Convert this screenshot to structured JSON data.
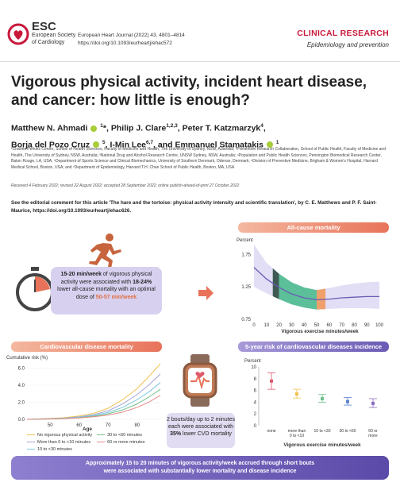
{
  "header": {
    "logo_name": "ESC",
    "society_line1": "European Society",
    "society_line2": "of Cardiology",
    "journal_line1": "European Heart Journal (2022) 43, 4801–4814",
    "journal_line2": "https://doi.org/10.1093/eurheartj/ehac572",
    "section": "CLINICAL RESEARCH",
    "subsection": "Epidemiology and prevention"
  },
  "title": "Vigorous physical activity, incident heart disease, and cancer: how little is enough?",
  "authors": {
    "a1": "Matthew N. Ahmadi",
    "a1_sup": "1",
    "a1_mark": "*,",
    "a2": "Philip J. Clare",
    "a2_sup": "1,2,3",
    "a3": ", Peter T. Katzmarzyk",
    "a3_sup": "4",
    "a3_end": ",",
    "a4": "Borja del Pozo Cruz",
    "a4_sup": "5",
    "a5": ", I-Min Lee",
    "a5_sup": "6,7",
    "a6": ", and Emmanuel Stamatakis",
    "a6_sup": "1"
  },
  "affiliations": "¹Charles Perkins Centre, School of Health Sciences, Faculty of Medicine and Health, The University of Sydney, NSW, Australia; ²Prevention Research Collaboration, School of Public Health, Faculty of Medicine and Health, The University of Sydney, NSW, Australia; ³National Drug and Alcohol Research Centre, UNSW Sydney, NSW, Australia; ⁴Population and Public Health Sciences, Pennington Biomedical Research Center, Baton Rouge, LA, USA; ⁵Department of Sports Science and Clinical Biomechanics, University of Southern Denmark, Odense, Denmark; ⁶Division of Preventive Medicine, Brigham & Women's Hospital, Harvard Medical School, Boston, USA; and ⁷Department of Epidemiology, Harvard T.H. Chan School of Public Health, Boston, MA, USA",
  "received": "Received 4 February 2022; revised 22 August 2022; accepted 28 September 2022; online publish-ahead-of-print 27 October 2022",
  "editorial": "See the editorial comment for this article 'The hare and the tortoise: physical activity intensity and scientific translation', by C. E. Matthews and P. F. Saint-Maurice, https://doi.org/10.1093/eurheartj/ehac626.",
  "abstract": {
    "bubble": {
      "p1": "15-20 min/week",
      "p2": " of vigorous physical activity were associated with ",
      "p3": "18-24%",
      "p4": " lower all-cause mortality with an optimal dose of ",
      "p5": "50-57 min/week"
    },
    "bouts": {
      "p1": "2 bouts/day up to 2 minutes each were associated with ",
      "p2": "35%",
      "p3": " lower CVD mortality"
    },
    "banner_line1": "Approximately 15 to 20 minutes of vigorous activity/week accrued through short bouts",
    "banner_line2": "were associated with substantially lower mortality and disease incidence"
  },
  "colors": {
    "accent_red": "#c8193b",
    "orange": "#e8735a",
    "purple": "#6b5bb5",
    "green_band": "#5bbf9a",
    "dark_band": "#3f5a54"
  },
  "chart_data": [
    {
      "type": "line",
      "title": "All-cause mortality",
      "ylabel": "Percent",
      "xlabel": "Vigorous exercise minutes/week",
      "x_ticks": [
        "0",
        "10",
        "20",
        "30",
        "40",
        "50",
        "60",
        "70",
        "80",
        "90",
        "100"
      ],
      "y_ticks": [
        "0.75",
        "1.25",
        "1.75"
      ],
      "ylim": [
        0.75,
        1.9
      ],
      "xlim": [
        0,
        105
      ],
      "x": [
        0,
        10,
        20,
        30,
        40,
        50,
        60,
        70,
        80,
        90,
        100
      ],
      "values": [
        1.55,
        1.37,
        1.24,
        1.14,
        1.08,
        1.05,
        1.06,
        1.08,
        1.09,
        1.1,
        1.1
      ],
      "ci_upper": [
        1.9,
        1.62,
        1.45,
        1.32,
        1.24,
        1.2,
        1.23,
        1.27,
        1.3,
        1.32,
        1.33
      ],
      "ci_lower": [
        1.25,
        1.15,
        1.06,
        0.98,
        0.93,
        0.9,
        0.91,
        0.92,
        0.92,
        0.92,
        0.91
      ],
      "highlight_dark": [
        15,
        20
      ],
      "highlight_green": [
        20,
        50
      ],
      "highlight_orange": [
        50,
        57
      ]
    },
    {
      "type": "line",
      "title": "Cardiovascular disease mortality",
      "ylabel": "Cumulative risk (%)",
      "xlabel": "Age",
      "x_ticks": [
        "50",
        "60",
        "70",
        "80"
      ],
      "y_ticks": [
        "0.0",
        "2.0",
        "4.0",
        "6.0"
      ],
      "xlim": [
        42,
        88
      ],
      "ylim": [
        0,
        6.5
      ],
      "x": [
        42,
        50,
        55,
        60,
        65,
        70,
        75,
        80,
        84,
        88
      ],
      "series": [
        {
          "name": "No vigorous physical activity",
          "color": "#f0c24b",
          "values": [
            0,
            0.1,
            0.2,
            0.4,
            0.7,
            1.3,
            2.3,
            3.6,
            5.0,
            6.5
          ]
        },
        {
          "name": "More than 0 to <10 minutes",
          "color": "#a9a3d8",
          "values": [
            0,
            0.08,
            0.15,
            0.3,
            0.55,
            1.0,
            1.8,
            2.9,
            4.0,
            5.3
          ]
        },
        {
          "name": "10 to <30 minutes",
          "color": "#7ec7e0",
          "values": [
            0,
            0.06,
            0.12,
            0.24,
            0.45,
            0.8,
            1.4,
            2.3,
            3.2,
            4.3
          ]
        },
        {
          "name": "30 to <60 minutes",
          "color": "#6fc08a",
          "values": [
            0,
            0.05,
            0.1,
            0.2,
            0.36,
            0.65,
            1.1,
            1.8,
            2.6,
            3.5
          ]
        },
        {
          "name": "60 or more minutes",
          "color": "#e68a8a",
          "values": [
            0,
            0.04,
            0.08,
            0.16,
            0.3,
            0.5,
            0.85,
            1.4,
            2.0,
            2.8
          ]
        }
      ]
    },
    {
      "type": "scatter",
      "title": "5-year risk of cardiovascular diseases incidence",
      "ylabel": "Percent",
      "xlabel": "Vigorous exercise minutes/week",
      "categories": [
        "none",
        "more than 0 to <10",
        "10 to <30",
        "30 to <60",
        "60 or more"
      ],
      "values": [
        7.6,
        5.4,
        4.6,
        4.1,
        3.8
      ],
      "ci_upper": [
        9.0,
        6.2,
        5.3,
        4.8,
        4.6
      ],
      "ci_lower": [
        6.2,
        4.7,
        4.0,
        3.5,
        3.1
      ],
      "colors": [
        "#e05a6a",
        "#f0c24b",
        "#6fc08a",
        "#5a7fd0",
        "#8a6fc0"
      ],
      "y_ticks": [
        "0",
        "2",
        "4",
        "6",
        "8",
        "10"
      ],
      "ylim": [
        0,
        10
      ]
    }
  ]
}
